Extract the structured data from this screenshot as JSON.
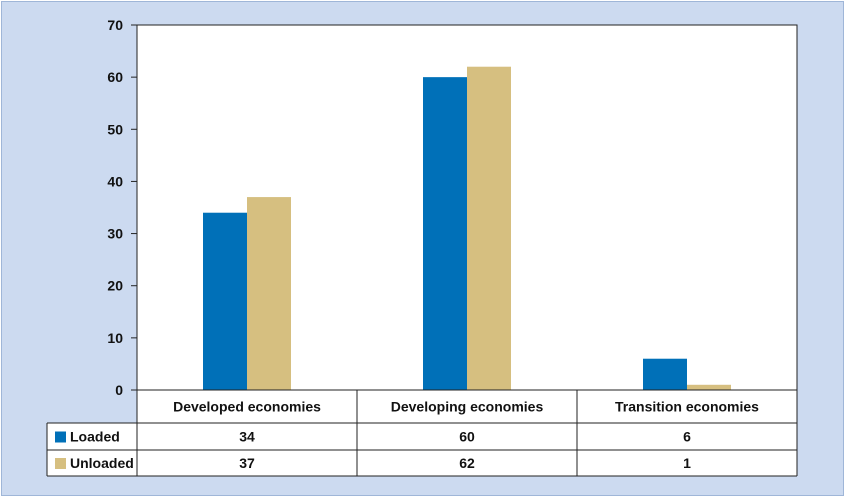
{
  "chart_data": {
    "type": "bar",
    "title": "",
    "xlabel": "",
    "ylabel": "",
    "categories": [
      "Developed economies",
      "Developing economies",
      "Transition economies"
    ],
    "series": [
      {
        "name": "Loaded",
        "values": [
          34,
          60,
          6
        ],
        "color": "#0070b8"
      },
      {
        "name": "Unloaded",
        "values": [
          37,
          62,
          1
        ],
        "color": "#d6bf80"
      }
    ],
    "ylim": [
      0,
      70
    ],
    "yticks": [
      0,
      10,
      20,
      30,
      40,
      50,
      60,
      70
    ],
    "grid": false,
    "legend": "data table below chart",
    "table_values": [
      [
        "34",
        "60",
        "6"
      ],
      [
        "37",
        "62",
        "1"
      ]
    ]
  }
}
